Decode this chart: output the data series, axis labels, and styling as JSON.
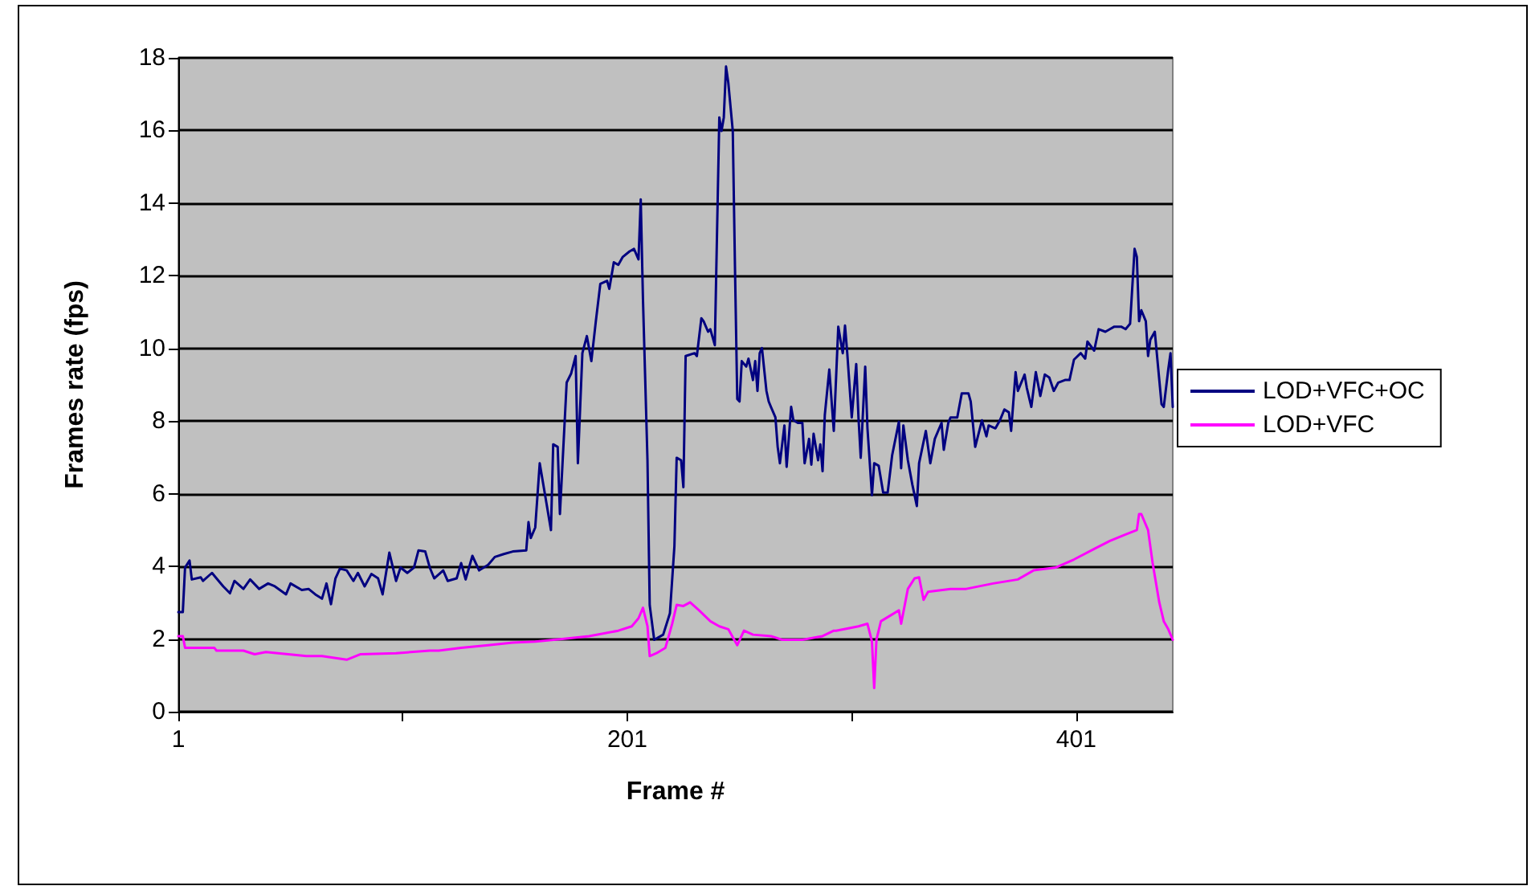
{
  "chart_data": {
    "type": "line",
    "xlabel": "Frame #",
    "ylabel": "Frames rate (fps)",
    "xlim": [
      1,
      444
    ],
    "xticks": [
      1,
      {
        "value": 101,
        "label": null
      },
      201,
      {
        "value": 301,
        "label": null
      },
      401
    ],
    "ylim": [
      0,
      18
    ],
    "yticks": [
      0,
      2,
      4,
      6,
      8,
      10,
      12,
      14,
      16,
      18
    ],
    "grid": "y",
    "legend": "right",
    "marker": "none",
    "line_style": "solid",
    "series": [
      {
        "name": "LOD+VFC+OC",
        "color": "#000080",
        "x": [
          1,
          3,
          4,
          6,
          7,
          11,
          12,
          16,
          18,
          21,
          24,
          26,
          30,
          33,
          37,
          41,
          44,
          49,
          51,
          56,
          59,
          62,
          65,
          67,
          69,
          71,
          73,
          76,
          79,
          81,
          84,
          87,
          90,
          92,
          95,
          98,
          100,
          103,
          106,
          108,
          111,
          113,
          115,
          119,
          121,
          125,
          127,
          129,
          132,
          135,
          139,
          142,
          146,
          150,
          156,
          157,
          158,
          160,
          162,
          165,
          167,
          168,
          170,
          171,
          174,
          176,
          178,
          179,
          181,
          183,
          185,
          187,
          189,
          192,
          193,
          195,
          197,
          199,
          202,
          204,
          206,
          207,
          208,
          210,
          211,
          213,
          217,
          220,
          222,
          223,
          225,
          226,
          227,
          231,
          232,
          234,
          235,
          237,
          238,
          240,
          242,
          243,
          244,
          245,
          246,
          248,
          249,
          250,
          251,
          252,
          254,
          255,
          257,
          258,
          259,
          260,
          261,
          263,
          264,
          265,
          267,
          268,
          269,
          271,
          272,
          274,
          275,
          277,
          279,
          280,
          282,
          283,
          284,
          286,
          287,
          288,
          289,
          291,
          293,
          295,
          297,
          298,
          299,
          301,
          303,
          304,
          305,
          307,
          308,
          310,
          311,
          313,
          315,
          317,
          319,
          322,
          323,
          324,
          326,
          328,
          330,
          331,
          334,
          336,
          338,
          341,
          342,
          344,
          345,
          348,
          350,
          353,
          354,
          356,
          359,
          361,
          362,
          365,
          367,
          369,
          371,
          372,
          374,
          375,
          378,
          379,
          381,
          383,
          385,
          387,
          389,
          391,
          393,
          396,
          398,
          400,
          403,
          405,
          406,
          409,
          411,
          414,
          416,
          418,
          421,
          423,
          425,
          427,
          428,
          429,
          430,
          432,
          433,
          434,
          436,
          439,
          440,
          442,
          443,
          444
        ],
        "values": [
          2.74,
          2.74,
          3.97,
          4.16,
          3.64,
          3.7,
          3.6,
          3.82,
          3.67,
          3.45,
          3.26,
          3.6,
          3.38,
          3.64,
          3.38,
          3.53,
          3.45,
          3.23,
          3.53,
          3.35,
          3.38,
          3.23,
          3.11,
          3.53,
          2.96,
          3.67,
          3.94,
          3.89,
          3.6,
          3.82,
          3.45,
          3.79,
          3.67,
          3.23,
          4.38,
          3.6,
          3.97,
          3.82,
          3.97,
          4.44,
          4.41,
          3.97,
          3.67,
          3.89,
          3.6,
          3.67,
          4.09,
          3.64,
          4.29,
          3.89,
          4.04,
          4.26,
          4.34,
          4.41,
          4.44,
          5.22,
          4.78,
          5.07,
          6.84,
          5.74,
          5.0,
          7.36,
          7.29,
          5.44,
          9.06,
          9.31,
          9.79,
          6.84,
          9.87,
          10.34,
          9.65,
          10.75,
          11.78,
          11.86,
          11.64,
          12.37,
          12.3,
          12.52,
          12.67,
          12.74,
          12.45,
          14.1,
          11.34,
          6.92,
          2.93,
          1.98,
          2.12,
          2.71,
          4.56,
          6.99,
          6.92,
          6.18,
          9.79,
          9.87,
          9.79,
          10.83,
          10.75,
          10.46,
          10.53,
          10.09,
          16.36,
          15.99,
          16.36,
          17.76,
          17.32,
          15.99,
          12.15,
          8.61,
          8.54,
          9.65,
          9.5,
          9.72,
          9.13,
          9.65,
          8.83,
          9.87,
          10.01,
          8.83,
          8.54,
          8.39,
          8.1,
          7.29,
          6.84,
          7.88,
          6.74,
          8.39,
          8.02,
          7.95,
          7.95,
          6.84,
          7.51,
          6.8,
          7.65,
          6.92,
          7.36,
          6.62,
          8.17,
          9.42,
          7.73,
          10.6,
          9.87,
          10.63,
          9.87,
          8.1,
          9.57,
          8.1,
          6.99,
          9.5,
          7.8,
          5.96,
          6.84,
          6.77,
          6.03,
          6.03,
          7.06,
          7.98,
          6.7,
          7.88,
          6.92,
          6.25,
          5.66,
          6.84,
          7.73,
          6.84,
          7.51,
          7.95,
          7.21,
          7.95,
          8.1,
          8.1,
          8.76,
          8.76,
          8.54,
          7.29,
          8.02,
          7.58,
          7.88,
          7.8,
          8.02,
          8.32,
          8.24,
          7.73,
          9.35,
          8.83,
          9.28,
          8.91,
          8.39,
          9.35,
          8.69,
          9.28,
          9.2,
          8.83,
          9.06,
          9.13,
          9.13,
          9.69,
          9.87,
          9.72,
          10.19,
          9.94,
          10.53,
          10.46,
          10.53,
          10.6,
          10.6,
          10.53,
          10.68,
          12.74,
          12.52,
          10.75,
          11.05,
          10.75,
          9.79,
          10.24,
          10.46,
          8.47,
          8.39,
          9.42,
          9.87,
          8.39
        ]
      },
      {
        "name": "LOD+VFC",
        "color": "#ff00ff",
        "x": [
          1,
          3,
          4,
          17,
          18,
          30,
          35,
          40,
          50,
          58,
          65,
          76,
          82,
          98,
          113,
          117,
          127,
          139,
          150,
          160,
          172,
          184,
          197,
          203,
          206,
          208,
          210,
          211,
          214,
          218,
          221,
          223,
          226,
          229,
          233,
          238,
          242,
          246,
          250,
          253,
          257,
          265,
          270,
          279,
          288,
          293,
          294,
          304,
          308,
          310,
          311,
          312,
          314,
          318,
          322,
          323,
          326,
          329,
          331,
          333,
          335,
          345,
          352,
          364,
          375,
          382,
          392,
          400,
          409,
          416,
          423,
          428,
          429,
          430,
          433,
          435,
          438,
          440,
          442,
          444
        ],
        "values": [
          2.08,
          2.08,
          1.76,
          1.76,
          1.68,
          1.68,
          1.58,
          1.64,
          1.58,
          1.53,
          1.53,
          1.43,
          1.58,
          1.61,
          1.68,
          1.68,
          1.76,
          1.83,
          1.9,
          1.93,
          2.0,
          2.08,
          2.23,
          2.35,
          2.57,
          2.86,
          2.35,
          1.53,
          1.61,
          1.76,
          2.42,
          2.94,
          2.91,
          3.01,
          2.79,
          2.49,
          2.35,
          2.27,
          1.83,
          2.23,
          2.12,
          2.08,
          1.98,
          1.98,
          2.08,
          2.23,
          2.23,
          2.35,
          2.42,
          1.93,
          0.65,
          1.98,
          2.49,
          2.64,
          2.79,
          2.42,
          3.38,
          3.67,
          3.7,
          3.08,
          3.3,
          3.38,
          3.38,
          3.53,
          3.64,
          3.89,
          3.97,
          4.19,
          4.48,
          4.7,
          4.88,
          5.0,
          5.44,
          5.44,
          5.0,
          4.11,
          3.01,
          2.49,
          2.27,
          1.98
        ]
      }
    ]
  }
}
